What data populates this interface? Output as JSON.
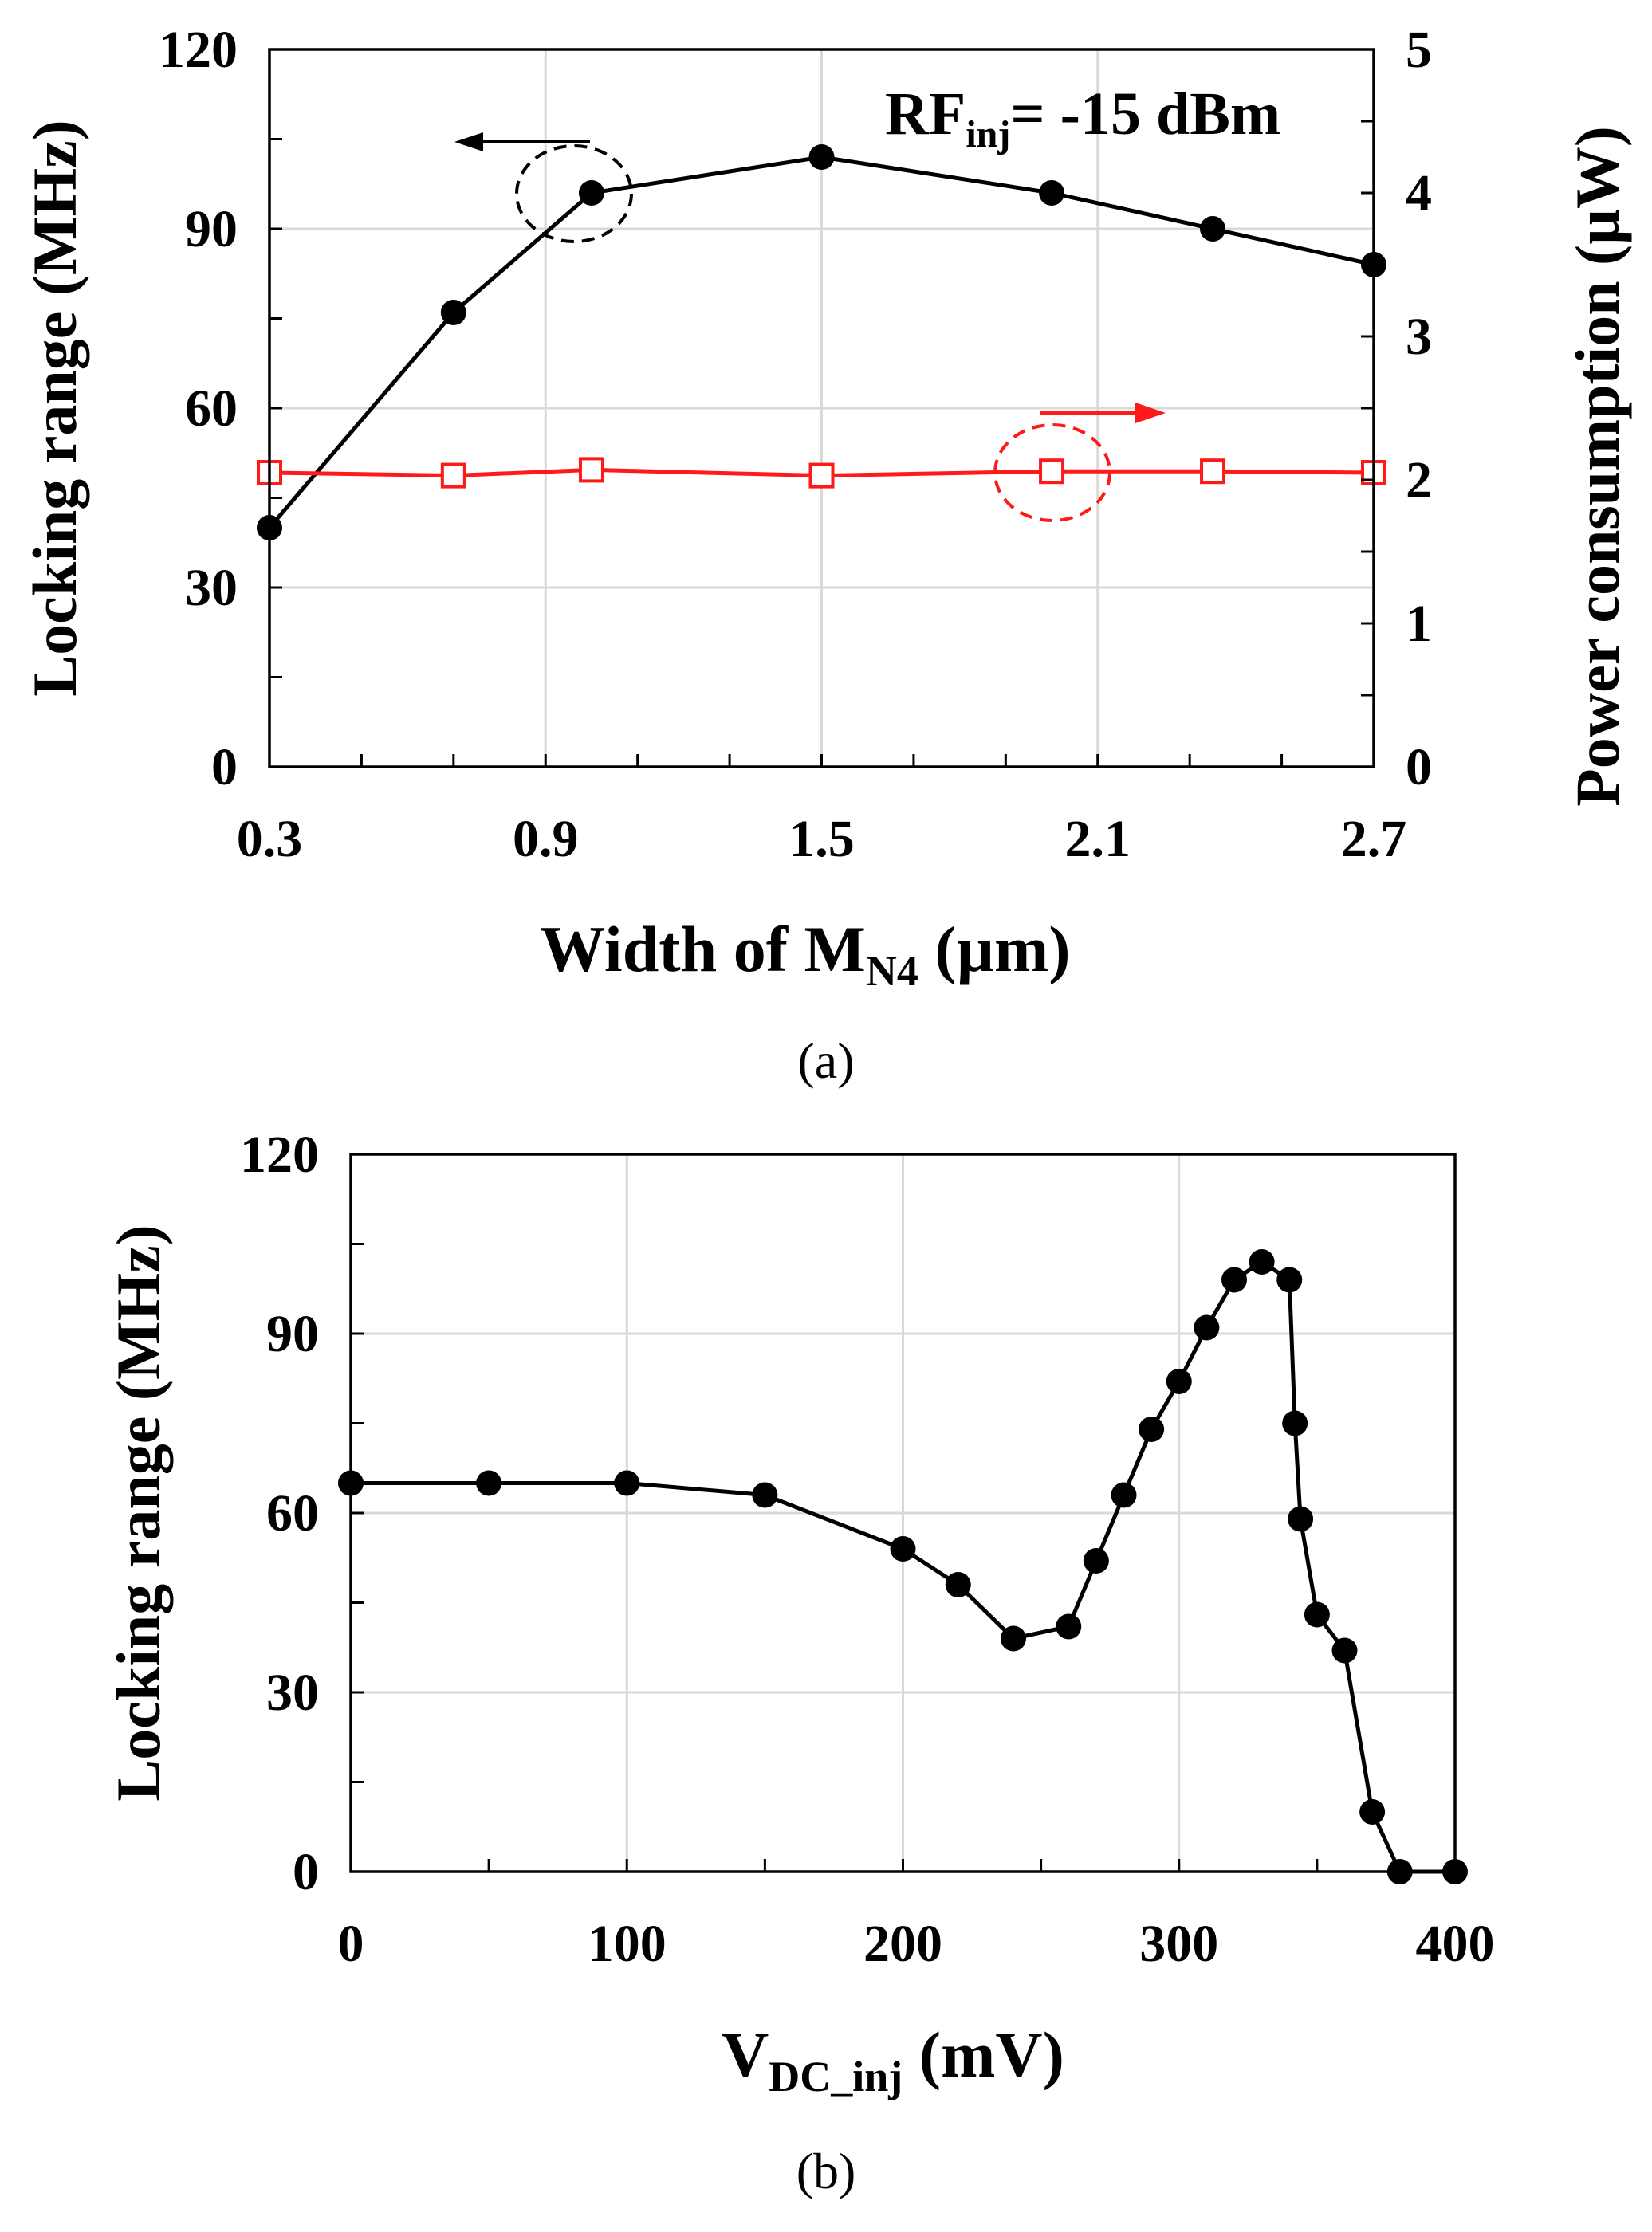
{
  "chart_data": [
    {
      "type": "line",
      "caption": "(a)",
      "xlabel": "Width of M",
      "xlabel_sub": "N4",
      "xlabel_tail": " (µm)",
      "ylabel": "Locking range (MHz)",
      "y2label": "Power consumption (µW)",
      "xlim": [
        0.3,
        2.7
      ],
      "ylim": [
        0,
        120
      ],
      "y2lim": [
        0,
        5
      ],
      "xticks": [
        "0.3",
        "0.9",
        "1.5",
        "2.1",
        "2.7"
      ],
      "yticks": [
        "0",
        "30",
        "60",
        "90",
        "120"
      ],
      "y2ticks": [
        "0",
        "1",
        "2",
        "3",
        "4",
        "5"
      ],
      "annotation": {
        "prefix": "RF",
        "sub": "inj",
        "suffix": "= -15 dBm"
      },
      "series": [
        {
          "name": "Locking range",
          "axis": "left",
          "color": "#000000",
          "marker": "filled-circle",
          "x": [
            0.3,
            0.7,
            1.0,
            1.5,
            2.0,
            2.35,
            2.7
          ],
          "values": [
            40,
            76,
            96,
            102,
            96,
            90,
            84
          ]
        },
        {
          "name": "Power consumption",
          "axis": "right",
          "color": "#ff1a1a",
          "marker": "open-square",
          "x": [
            0.3,
            0.7,
            1.0,
            1.5,
            2.0,
            2.35,
            2.7
          ],
          "values": [
            2.05,
            2.03,
            2.07,
            2.03,
            2.06,
            2.06,
            2.05
          ]
        }
      ]
    },
    {
      "type": "line",
      "caption": "(b)",
      "xlabel": "V",
      "xlabel_sub": "DC_inj",
      "xlabel_tail": " (mV)",
      "ylabel": "Locking range (MHz)",
      "xlim": [
        0,
        400
      ],
      "ylim": [
        0,
        120
      ],
      "xticks": [
        "0",
        "100",
        "200",
        "300",
        "400"
      ],
      "yticks": [
        "0",
        "30",
        "60",
        "90",
        "120"
      ],
      "series": [
        {
          "name": "Locking range",
          "color": "#000000",
          "marker": "filled-circle",
          "x": [
            0,
            50,
            100,
            150,
            200,
            220,
            240,
            260,
            270,
            280,
            290,
            300,
            310,
            320,
            330,
            340,
            342,
            344,
            350,
            360,
            370,
            380,
            400
          ],
          "values": [
            65,
            65,
            65,
            63,
            54,
            48,
            39,
            41,
            52,
            63,
            74,
            82,
            91,
            99,
            102,
            99,
            75,
            59,
            43,
            37,
            10,
            0,
            0
          ]
        }
      ]
    }
  ]
}
